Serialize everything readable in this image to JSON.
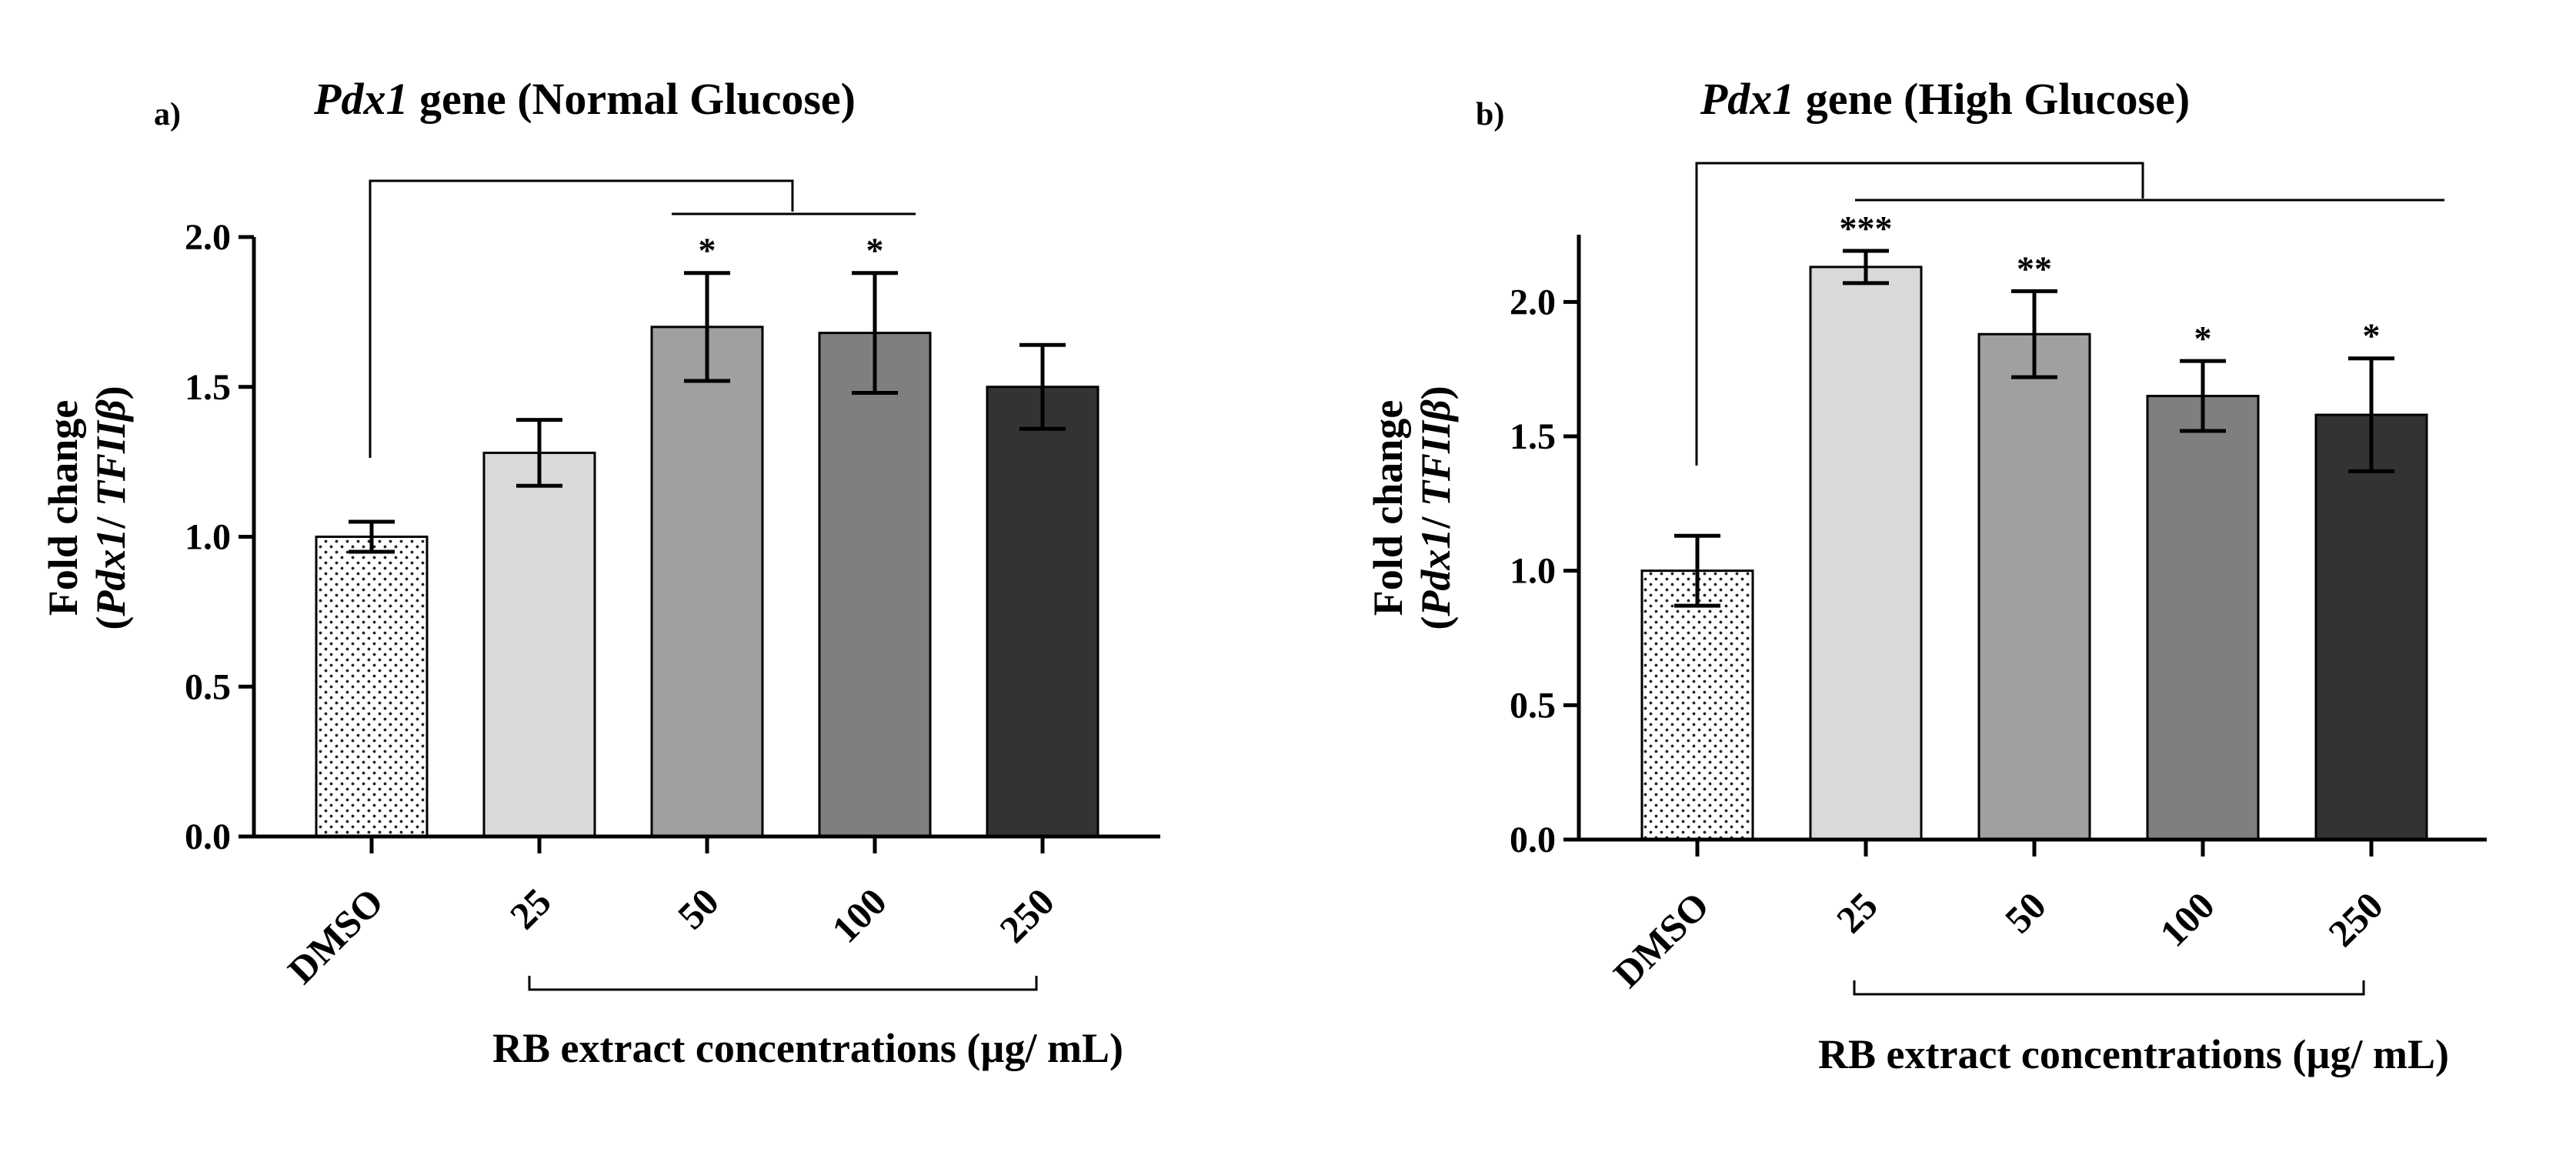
{
  "chart_data": [
    {
      "type": "bar",
      "panel_label": "a)",
      "title_gene": "Pdx1",
      "title_rest": " gene (Normal Glucose)",
      "ylabel_line1": "Fold change",
      "ylabel_line2_open": "(",
      "ylabel_gene": "Pdx1",
      "ylabel_sep": "/ ",
      "ylabel_ref": "TFIIβ",
      "ylabel_close": ")",
      "xlabel": "RB extract concentrations (µg/ mL)",
      "categories": [
        "DMSO",
        "25",
        "50",
        "100",
        "250"
      ],
      "values": [
        1.0,
        1.28,
        1.7,
        1.68,
        1.5
      ],
      "errors": [
        0.05,
        0.11,
        0.18,
        0.2,
        0.14
      ],
      "significance": [
        "",
        "",
        "*",
        "*",
        ""
      ],
      "fills": [
        "dotted",
        "#d9d9d9",
        "#a0a0a0",
        "#7f7f7f",
        "#333333"
      ],
      "ylim": [
        0,
        2.0
      ],
      "yticks": [
        "0.0",
        "0.5",
        "1.0",
        "1.5",
        "2.0"
      ],
      "ytick_values": [
        0,
        0.5,
        1.0,
        1.5,
        2.0
      ]
    },
    {
      "type": "bar",
      "panel_label": "b)",
      "title_gene": "Pdx1",
      "title_rest": " gene (High Glucose)",
      "ylabel_line1": "Fold change",
      "ylabel_line2_open": "(",
      "ylabel_gene": "Pdx1",
      "ylabel_sep": "/ ",
      "ylabel_ref": "TFIIβ",
      "ylabel_close": ")",
      "xlabel": "RB extract concentrations (µg/ mL)",
      "categories": [
        "DMSO",
        "25",
        "50",
        "100",
        "250"
      ],
      "values": [
        1.0,
        2.13,
        1.88,
        1.65,
        1.58
      ],
      "errors": [
        0.13,
        0.06,
        0.16,
        0.13,
        0.21
      ],
      "significance": [
        "",
        "***",
        "**",
        "*",
        "*"
      ],
      "fills": [
        "dotted",
        "#d9d9d9",
        "#a0a0a0",
        "#7f7f7f",
        "#333333"
      ],
      "ylim": [
        0,
        2.25
      ],
      "yticks": [
        "0.0",
        "0.5",
        "1.0",
        "1.5",
        "2.0"
      ],
      "ytick_values": [
        0,
        0.5,
        1.0,
        1.5,
        2.0
      ]
    }
  ]
}
